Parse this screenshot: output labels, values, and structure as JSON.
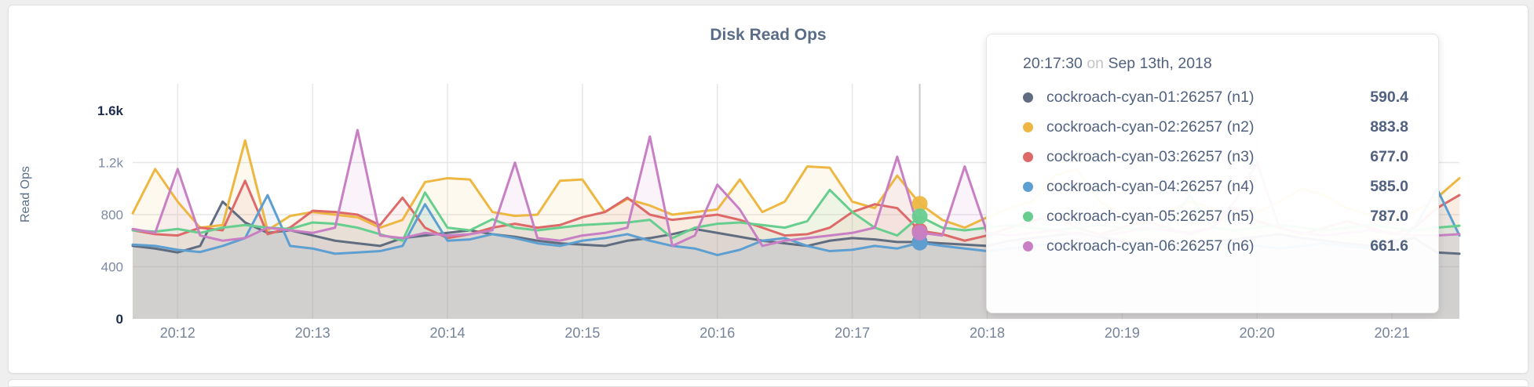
{
  "page": {
    "background": "#efefef",
    "card_background": "#ffffff"
  },
  "tooltip": {
    "time": "20:17:30",
    "separator": "on",
    "date": "Sep 13th, 2018",
    "rows": [
      {
        "label": "cockroach-cyan-01:26257 (n1)",
        "value": "590.4",
        "color": "#606d80"
      },
      {
        "label": "cockroach-cyan-02:26257 (n2)",
        "value": "883.8",
        "color": "#edb742"
      },
      {
        "label": "cockroach-cyan-03:26257 (n3)",
        "value": "677.0",
        "color": "#dd6a68"
      },
      {
        "label": "cockroach-cyan-04:26257 (n4)",
        "value": "585.0",
        "color": "#5e9fd1"
      },
      {
        "label": "cockroach-cyan-05:26257 (n5)",
        "value": "787.0",
        "color": "#67ce8f"
      },
      {
        "label": "cockroach-cyan-06:26257 (n6)",
        "value": "661.6",
        "color": "#c87fc4"
      }
    ]
  },
  "chart_data": {
    "type": "line",
    "title": "Disk Read Ops",
    "ylabel": "Read Ops",
    "xlabel": "",
    "ylim": [
      0,
      1600
    ],
    "grid": true,
    "legend_position": "tooltip-only",
    "x_start": "20:11:40",
    "x_step_seconds": 10,
    "x_tick_labels": [
      "20:12",
      "20:13",
      "20:14",
      "20:15",
      "20:16",
      "20:17",
      "20:18",
      "20:19",
      "20:20",
      "20:21"
    ],
    "x_tick_indices": [
      2,
      8,
      14,
      20,
      26,
      32,
      38,
      44,
      50,
      56
    ],
    "y_ticks": [
      {
        "label": "0",
        "value": 0,
        "emphasis": true
      },
      {
        "label": "400",
        "value": 400,
        "emphasis": false
      },
      {
        "label": "800",
        "value": 800,
        "emphasis": false
      },
      {
        "label": "1.2k",
        "value": 1200,
        "emphasis": false
      },
      {
        "label": "1.6k",
        "value": 1600,
        "emphasis": true
      }
    ],
    "hover_index": 35,
    "hover_time": "20:17:30",
    "series": [
      {
        "name": "cockroach-cyan-01:26257 (n1)",
        "color": "#606d80",
        "values": [
          560,
          540,
          510,
          560,
          900,
          740,
          660,
          680,
          640,
          600,
          580,
          560,
          620,
          640,
          660,
          680,
          650,
          630,
          600,
          580,
          570,
          560,
          600,
          620,
          650,
          690,
          660,
          630,
          600,
          580,
          560,
          600,
          620,
          610,
          590,
          590.4,
          580,
          570,
          560,
          600,
          620,
          640,
          660,
          630,
          600,
          580,
          570,
          560,
          590,
          610,
          630,
          650,
          620,
          600,
          580,
          560,
          600,
          620,
          510,
          500
        ]
      },
      {
        "name": "cockroach-cyan-02:26257 (n2)",
        "color": "#edb742",
        "values": [
          810,
          1150,
          900,
          700,
          720,
          1370,
          680,
          790,
          820,
          800,
          780,
          700,
          760,
          1050,
          1080,
          1070,
          820,
          790,
          800,
          1060,
          1070,
          820,
          920,
          870,
          800,
          820,
          840,
          1070,
          820,
          900,
          1170,
          1160,
          900,
          850,
          1100,
          883.8,
          760,
          700,
          780,
          850,
          900,
          1100,
          1150,
          900,
          800,
          750,
          820,
          900,
          850,
          780,
          820,
          900,
          1000,
          950,
          850,
          800,
          780,
          820,
          930,
          1080
        ]
      },
      {
        "name": "cockroach-cyan-03:26257 (n3)",
        "color": "#dd6a68",
        "values": [
          680,
          650,
          640,
          700,
          680,
          1060,
          650,
          700,
          830,
          820,
          800,
          720,
          930,
          700,
          620,
          650,
          700,
          730,
          700,
          720,
          780,
          820,
          930,
          800,
          760,
          780,
          800,
          760,
          700,
          640,
          650,
          700,
          820,
          880,
          850,
          677,
          650,
          600,
          640,
          700,
          750,
          800,
          700,
          650,
          700,
          750,
          700,
          650,
          700,
          850,
          750,
          700,
          650,
          700,
          750,
          700,
          650,
          700,
          850,
          950
        ]
      },
      {
        "name": "cockroach-cyan-04:26257 (n4)",
        "color": "#5e9fd1",
        "values": [
          570,
          560,
          530,
          513,
          560,
          620,
          950,
          560,
          540,
          500,
          510,
          520,
          560,
          880,
          600,
          610,
          650,
          620,
          580,
          560,
          600,
          620,
          650,
          600,
          560,
          540,
          490,
          530,
          600,
          620,
          560,
          520,
          530,
          560,
          540,
          585,
          560,
          540,
          520,
          540,
          560,
          580,
          560,
          540,
          560,
          580,
          560,
          540,
          560,
          580,
          560,
          540,
          560,
          580,
          560,
          540,
          560,
          700,
          1000,
          640
        ]
      },
      {
        "name": "cockroach-cyan-05:26257 (n5)",
        "color": "#67ce8f",
        "values": [
          680,
          670,
          690,
          660,
          700,
          720,
          700,
          690,
          740,
          730,
          700,
          650,
          600,
          970,
          700,
          680,
          765,
          700,
          680,
          700,
          720,
          730,
          740,
          760,
          620,
          700,
          730,
          740,
          720,
          700,
          750,
          990,
          820,
          700,
          640,
          787,
          700,
          680,
          700,
          720,
          700,
          680,
          700,
          720,
          700,
          680,
          700,
          950,
          700,
          680,
          700,
          720,
          700,
          680,
          700,
          720,
          700,
          680,
          700,
          715
        ]
      },
      {
        "name": "cockroach-cyan-06:26257 (n6)",
        "color": "#c87fc4",
        "values": [
          690,
          660,
          1150,
          640,
          600,
          620,
          700,
          680,
          660,
          700,
          1450,
          640,
          620,
          660,
          640,
          650,
          680,
          1200,
          620,
          600,
          640,
          660,
          700,
          1400,
          560,
          640,
          1030,
          840,
          560,
          600,
          620,
          640,
          660,
          700,
          1245,
          661.6,
          640,
          1170,
          660,
          640,
          660,
          680,
          650,
          640,
          660,
          700,
          680,
          660,
          700,
          900,
          1200,
          700,
          660,
          640,
          660,
          680,
          660,
          640,
          640,
          650
        ]
      }
    ]
  }
}
